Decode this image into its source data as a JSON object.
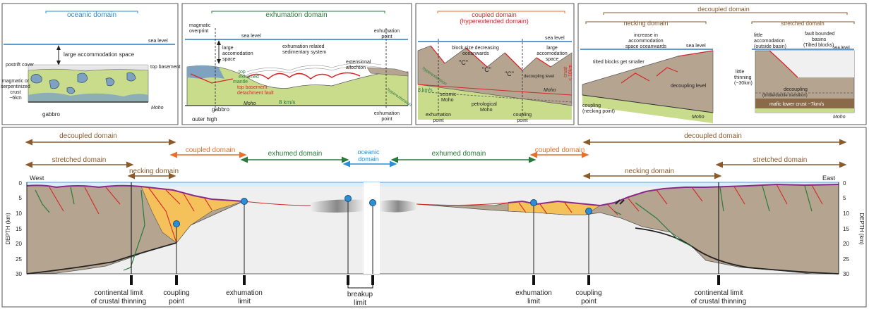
{
  "colors": {
    "brown": "#8b5a2b",
    "orange": "#e8702a",
    "green": "#2a7a3c",
    "blue": "#2a8fd6",
    "crust": "#b5a48f",
    "hyper": "#f5c15a",
    "mantle": "#c8dc8c",
    "lowercrust": "#8db44a",
    "seawater": "#d9eef8",
    "gabbro": "#7fa2c0",
    "red": "#d7262a",
    "purple": "#8a2a8a"
  },
  "panels": {
    "oceanic": {
      "title": "oceanic domain",
      "sea_level": "sea level",
      "accommodation": "large accommodation space",
      "postrift": "postrift cover",
      "top_basement": "top basement",
      "crust_l1": "magmatic or",
      "crust_l2": "serpentinized",
      "crust_l3": "crust",
      "crust_l4": "~6km",
      "gabbro": "gabbro",
      "moho": "Moho"
    },
    "exhumation": {
      "title": "exhumation domain",
      "overprint_l1": "magmatic",
      "overprint_l2": "overprint",
      "sea_level": "sea level",
      "accom_l1": "large",
      "accom_l2": "accomodation",
      "accom_l3": "space",
      "sed_l1": "exhumation related",
      "sed_l2": "sedimentary system",
      "point_l1": "exhumation",
      "point_l2": "point",
      "allochton_l1": "extensional",
      "allochton_l2": "allochton",
      "top_l1": "top",
      "top_l2": "exhumed",
      "top_l3": "mantle",
      "detach_l1": "top basement",
      "detach_l2": "detachment fault",
      "gabbro": "gabbro",
      "moho": "Moho",
      "velocity": "8 km/s",
      "outer_high": "outer high",
      "point2_l1": "exhumation",
      "point2_l2": "point",
      "hyper": "hyperextension"
    },
    "coupled": {
      "title_l1": "coupled domain",
      "title_l2": "(hyperextended domain)",
      "sea_level": "sea level",
      "blocks_l1": "block size decreasing",
      "blocks_l2": "oceanwards",
      "accom_l1": "large",
      "accom_l2": "accomodation",
      "accom_l3": "space",
      "crust_l1": "crust",
      "crust_l2": "< 10km",
      "c1": "\"C\"",
      "c2": "\"C\"",
      "c3": "\"C\"",
      "decoupling": "decoupling level",
      "hyper": "hyperextension",
      "velocity": "8 km/s",
      "seismic_l1": "seismic",
      "seismic_l2": "Moho",
      "moho": "Moho",
      "petro_l1": "petrological",
      "petro_l2": "Moho",
      "expoint_l1": "exhumation",
      "expoint_l2": "point",
      "cpoint_l1": "coupling",
      "cpoint_l2": "point"
    },
    "decoupled": {
      "title": "decoupled domain",
      "necking": "necking domain",
      "stretched": "stretched domain",
      "increase_l1": "increase in",
      "increase_l2": "accommodation",
      "increase_l3": "space oceanwards",
      "tilted": "tilted blocks get smaller",
      "sea_level": "sea level",
      "little_l1": "little",
      "little_l2": "accomodation",
      "little_l3": "(outside basin)",
      "fault_l1": "fault bounded",
      "fault_l2": "basins",
      "fault_l3": "(Tilted blocks)",
      "sea_level2": "sea level",
      "thin_l1": "little",
      "thin_l2": "thinning",
      "thin_l3": "(~30km)",
      "declevel": "decoupling level",
      "coupling_l1": "coupling",
      "coupling_l2": "(necking point)",
      "moho": "Moho",
      "dec2_l1": "decoupling",
      "dec2_l2": "(brittle/ductile transition)",
      "mafic": "mafic lower crust ~7km/s",
      "moho2": "Moho"
    }
  },
  "section": {
    "domains": {
      "decoupled_left": "decoupled domain",
      "decoupled_right": "decoupled domain",
      "stretched_left": "stretched domain",
      "stretched_right": "stretched domain",
      "coupled_left": "coupled domain",
      "coupled_right": "coupled domain",
      "exhumed_left": "exhumed domain",
      "exhumed_right": "exhumed domain",
      "oceanic_l1": "oceanic",
      "oceanic_l2": "domain",
      "necking_left": "necking domain",
      "necking_right": "necking domain"
    },
    "west": "West",
    "east": "East",
    "depth_label": "DEPTH (km)",
    "depth_ticks": [
      "0",
      "5",
      "10",
      "15",
      "20",
      "25",
      "30"
    ],
    "limits": {
      "cont_left_l1": "continental limit",
      "cont_left_l2": "of crustal thinning",
      "coupling_left_l1": "coupling",
      "coupling_left_l2": "point",
      "exhum_left_l1": "exhumation",
      "exhum_left_l2": "limit",
      "breakup_l1": "breakup",
      "breakup_l2": "limit",
      "exhum_right_l1": "exhumation",
      "exhum_right_l2": "limit",
      "coupling_right_l1": "coupling",
      "coupling_right_l2": "point",
      "cont_right_l1": "continental limit",
      "cont_right_l2": "of crustal thinning"
    }
  }
}
